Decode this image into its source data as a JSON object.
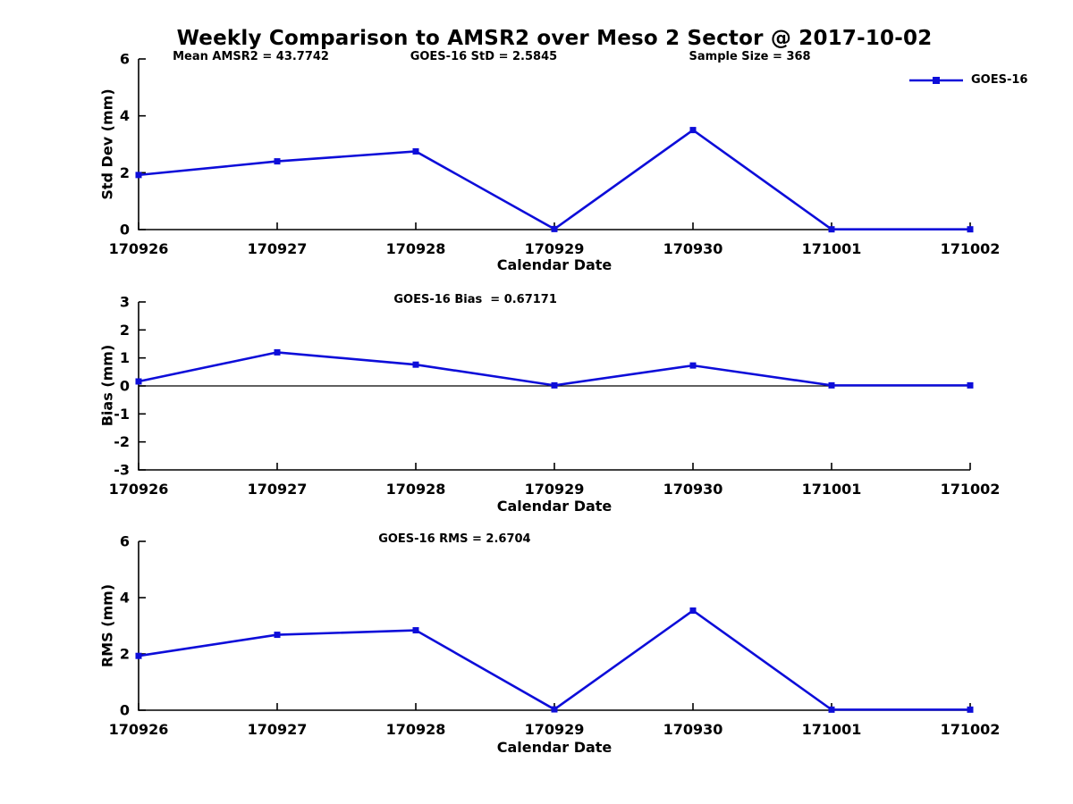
{
  "figure": {
    "title": "Weekly Comparison to AMSR2 over Meso 2 Sector @ 2017-10-02"
  },
  "colors": {
    "series_blue": "#0d0dd9",
    "axis_black": "#000000"
  },
  "chart_data": [
    {
      "type": "line",
      "id": "stddev",
      "ylabel": "Std Dev (mm)",
      "xlabel": "Calendar Date",
      "ylim": [
        0,
        6
      ],
      "yticks": [
        0,
        2,
        4,
        6
      ],
      "grid": false,
      "zero_line": false,
      "legend_position": "top-right",
      "categories": [
        "170926",
        "170927",
        "170928",
        "170929",
        "170930",
        "171001",
        "171002"
      ],
      "series": [
        {
          "name": "GOES-16",
          "color": "#0d0dd9",
          "marker": "square",
          "values": [
            1.92,
            2.4,
            2.75,
            0.02,
            3.5,
            0.01,
            0.01
          ]
        }
      ],
      "annotations": [
        {
          "text": "Mean AMSR2 = 43.7742",
          "xfrac": 0.135
        },
        {
          "text": "GOES-16 StD = 2.5845",
          "xfrac": 0.415
        },
        {
          "text": "Sample Size = 368",
          "xfrac": 0.735
        }
      ]
    },
    {
      "type": "line",
      "id": "bias",
      "ylabel": "Bias (mm)",
      "xlabel": "Calendar Date",
      "ylim": [
        -3,
        3
      ],
      "yticks": [
        -3,
        -2,
        -1,
        0,
        1,
        2,
        3
      ],
      "grid": false,
      "zero_line": true,
      "legend_position": "none",
      "categories": [
        "170926",
        "170927",
        "170928",
        "170929",
        "170930",
        "171001",
        "171002"
      ],
      "series": [
        {
          "name": "GOES-16",
          "color": "#0d0dd9",
          "marker": "square",
          "values": [
            0.16,
            1.2,
            0.76,
            0.02,
            0.73,
            0.02,
            0.02
          ]
        }
      ],
      "annotations": [
        {
          "text": "GOES-16 Bias  = 0.67171",
          "xfrac": 0.405
        }
      ]
    },
    {
      "type": "line",
      "id": "rms",
      "ylabel": "RMS (mm)",
      "xlabel": "Calendar Date",
      "ylim": [
        0,
        6
      ],
      "yticks": [
        0,
        2,
        4,
        6
      ],
      "grid": false,
      "zero_line": false,
      "legend_position": "none",
      "categories": [
        "170926",
        "170927",
        "170928",
        "170929",
        "170930",
        "171001",
        "171002"
      ],
      "series": [
        {
          "name": "GOES-16",
          "color": "#0d0dd9",
          "marker": "square",
          "values": [
            1.93,
            2.68,
            2.84,
            0.03,
            3.54,
            0.02,
            0.02
          ]
        }
      ],
      "annotations": [
        {
          "text": "GOES-16 RMS = 2.6704",
          "xfrac": 0.38
        }
      ]
    }
  ]
}
